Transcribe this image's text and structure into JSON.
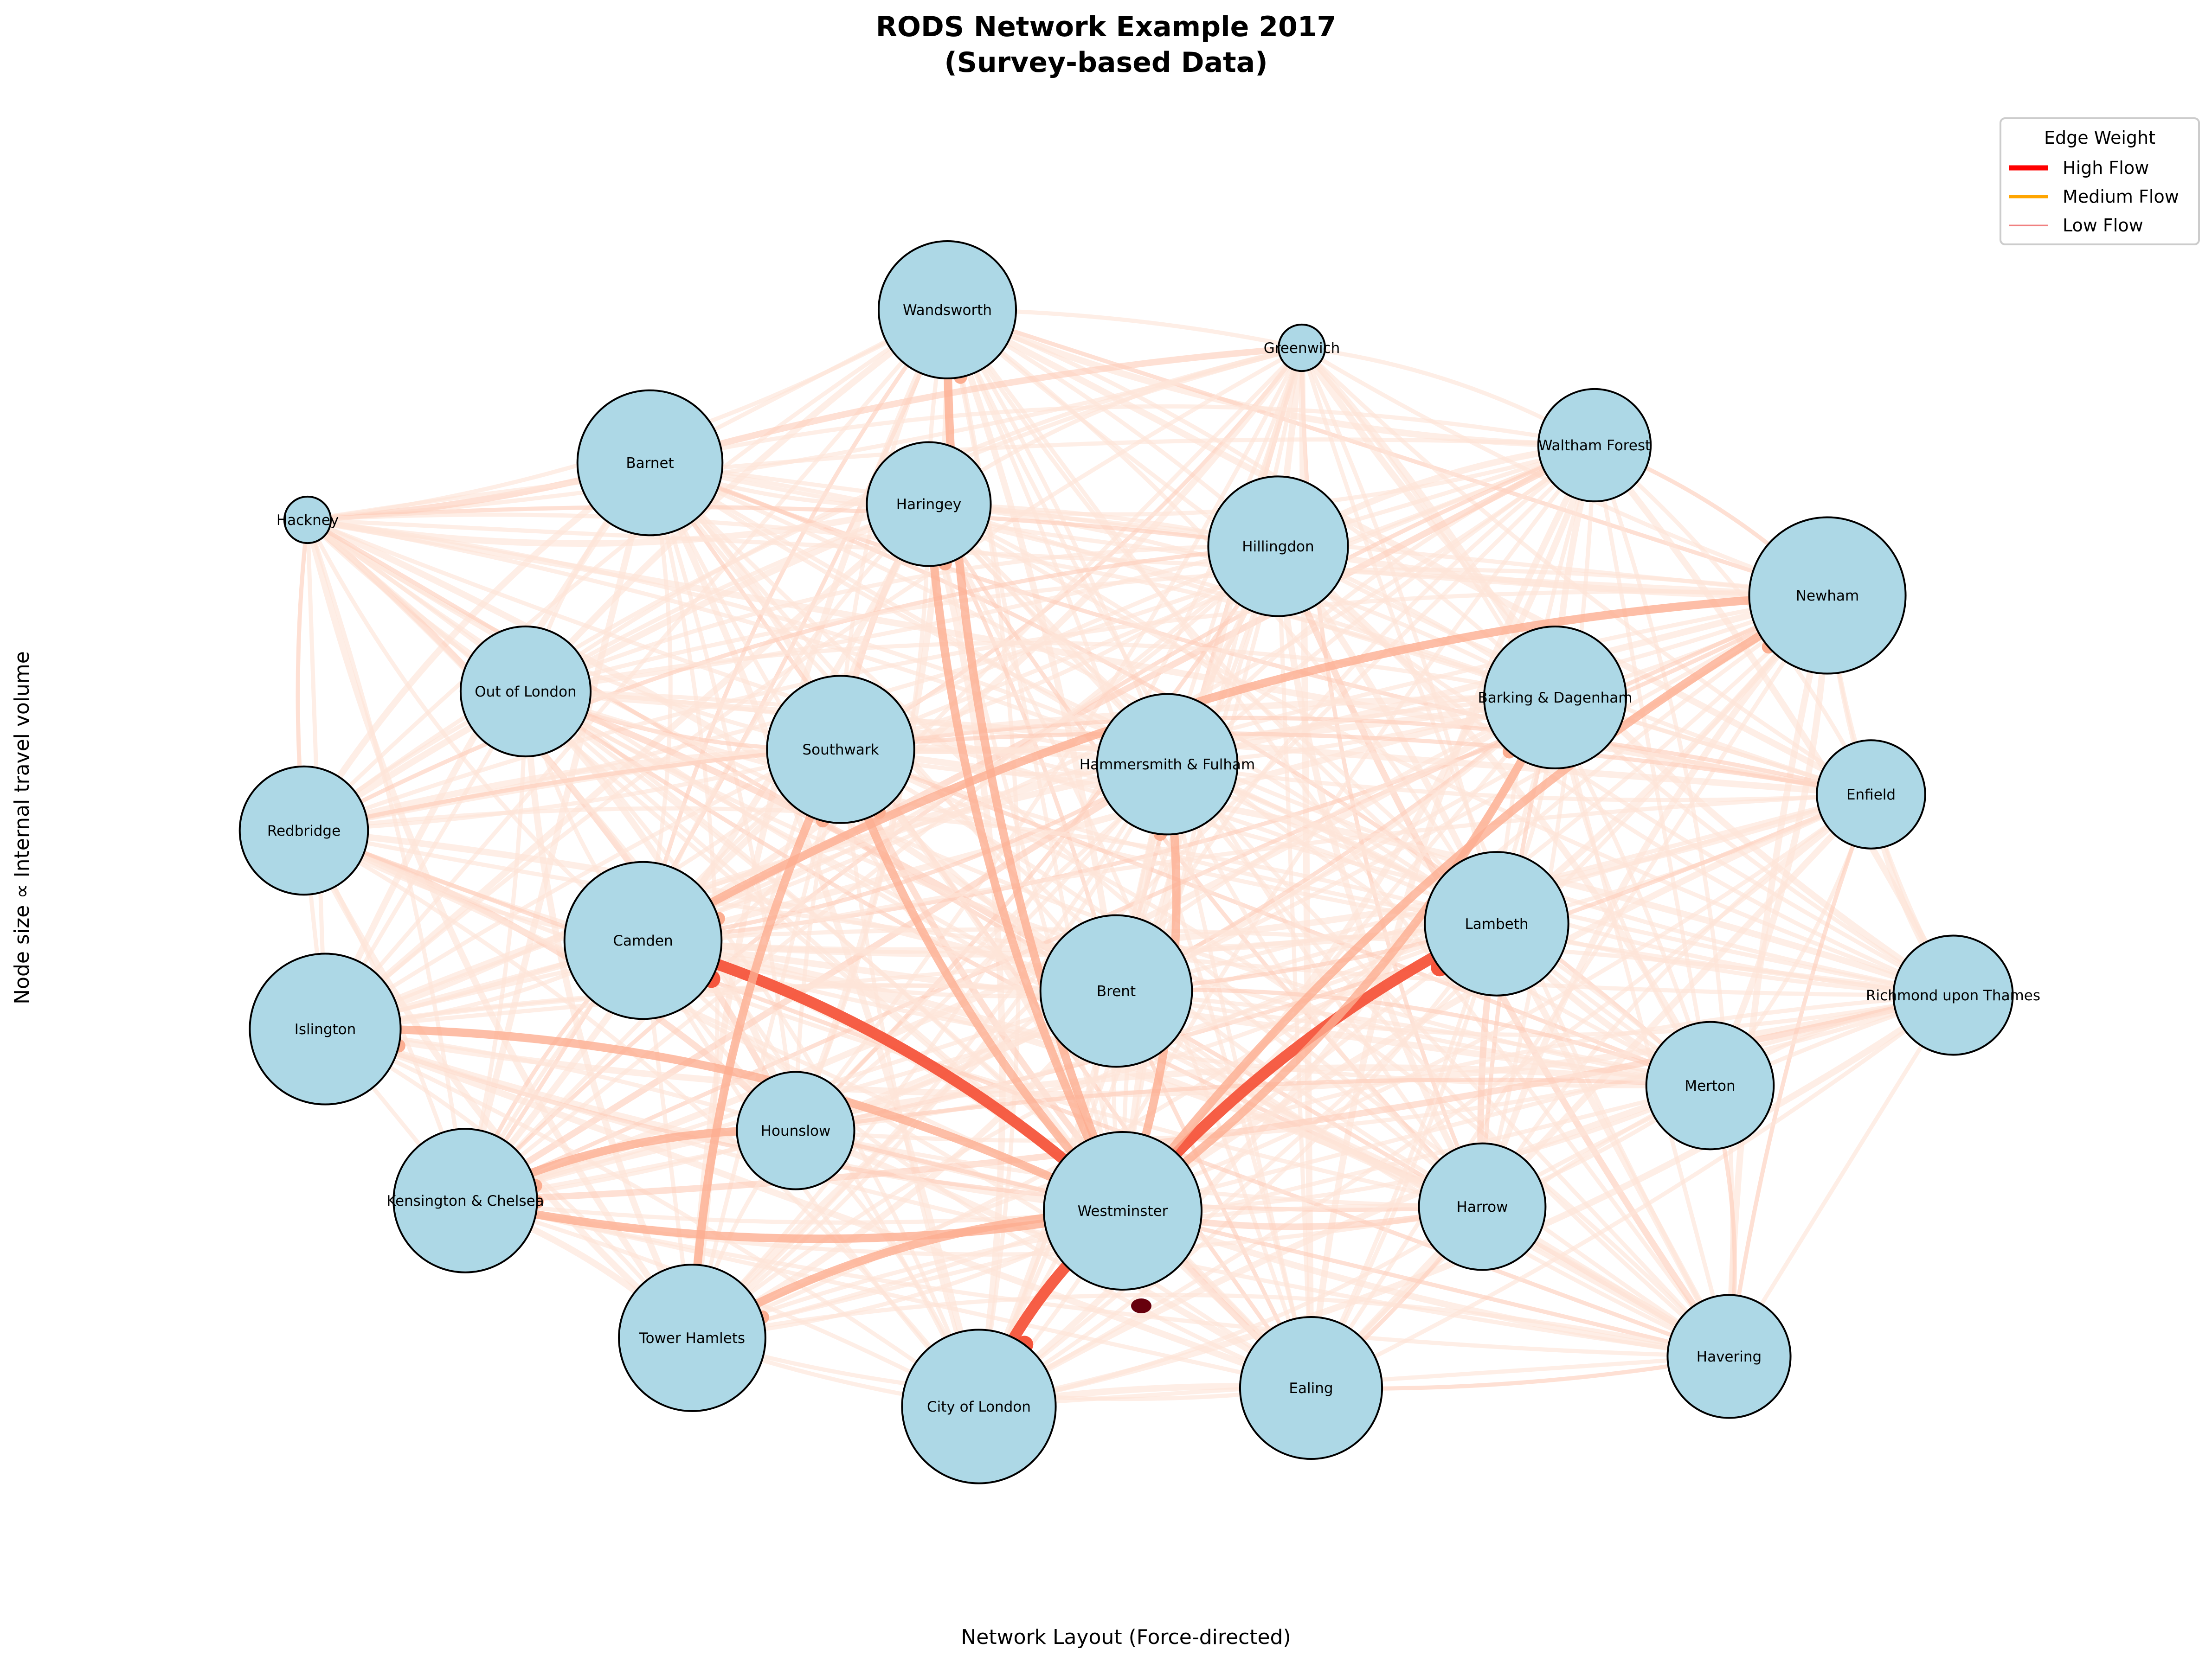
{
  "title_line1": "RODS Network Example 2017",
  "title_line2": "(Survey-based Data)",
  "xlabel": "Network Layout (Force-directed)",
  "ylabel": "Node size ∝ Internal travel volume",
  "legend": {
    "title": "Edge Weight",
    "placement": "top-right",
    "items": [
      {
        "label": "High Flow",
        "color": "#ff0000"
      },
      {
        "label": "Medium Flow",
        "color": "#ffa500"
      },
      {
        "label": "Low Flow",
        "color": "#f08080"
      }
    ]
  },
  "colors": {
    "node_fill": "#add8e6",
    "node_stroke": "#000000",
    "edge_strong": "#f5553c",
    "edge_medium": "#fcae91",
    "edge_light": "#fee5d9",
    "edge_darkest": "#67000d"
  },
  "nodes": [
    {
      "id": "Wandsworth",
      "label": "Wandsworth",
      "volume": 0.72
    },
    {
      "id": "Greenwich",
      "label": "Greenwich",
      "volume": 0.03
    },
    {
      "id": "Barnet",
      "label": "Barnet",
      "volume": 0.82
    },
    {
      "id": "Haringey",
      "label": "Haringey",
      "volume": 0.56
    },
    {
      "id": "Waltham Forest",
      "label": "Waltham Forest",
      "volume": 0.44
    },
    {
      "id": "Hackney",
      "label": "Hackney",
      "volume": 0.03
    },
    {
      "id": "Hillingdon",
      "label": "Hillingdon",
      "volume": 0.75
    },
    {
      "id": "Newham",
      "label": "Newham",
      "volume": 0.98
    },
    {
      "id": "Out of London",
      "label": "Out of London",
      "volume": 0.63
    },
    {
      "id": "Southwark",
      "label": "Southwark",
      "volume": 0.85
    },
    {
      "id": "Barking & Dagenham",
      "label": "Barking & Dagenham",
      "volume": 0.78
    },
    {
      "id": "Hammersmith & Fulham",
      "label": "Hammersmith & Fulham",
      "volume": 0.76
    },
    {
      "id": "Enfield",
      "label": "Enfield",
      "volume": 0.4
    },
    {
      "id": "Redbridge",
      "label": "Redbridge",
      "volume": 0.61
    },
    {
      "id": "Camden",
      "label": "Camden",
      "volume": 0.99
    },
    {
      "id": "Lambeth",
      "label": "Lambeth",
      "volume": 0.8
    },
    {
      "id": "Brent",
      "label": "Brent",
      "volume": 0.91
    },
    {
      "id": "Islington",
      "label": "Islington",
      "volume": 0.9
    },
    {
      "id": "Richmond upon Thames",
      "label": "Richmond upon Thames",
      "volume": 0.51
    },
    {
      "id": "Merton",
      "label": "Merton",
      "volume": 0.6
    },
    {
      "id": "Hounslow",
      "label": "Hounslow",
      "volume": 0.49
    },
    {
      "id": "Kensington & Chelsea",
      "label": "Kensington & Chelsea",
      "volume": 0.8
    },
    {
      "id": "Westminster",
      "label": "Westminster",
      "volume": 1.0
    },
    {
      "id": "Harrow",
      "label": "Harrow",
      "volume": 0.59
    },
    {
      "id": "Tower Hamlets",
      "label": "Tower Hamlets",
      "volume": 0.84
    },
    {
      "id": "City of London",
      "label": "City of London",
      "volume": 0.94
    },
    {
      "id": "Ealing",
      "label": "Ealing",
      "volume": 0.78
    },
    {
      "id": "Havering",
      "label": "Havering",
      "volume": 0.55
    }
  ],
  "highlighted_edges": [
    {
      "source": "Westminster",
      "target": "Camden",
      "level": "strong"
    },
    {
      "source": "Westminster",
      "target": "Lambeth",
      "level": "strong"
    },
    {
      "source": "Westminster",
      "target": "City of London",
      "level": "strong"
    },
    {
      "source": "Westminster",
      "target": "Southwark",
      "level": "medium"
    },
    {
      "source": "Westminster",
      "target": "Islington",
      "level": "medium"
    },
    {
      "source": "Westminster",
      "target": "Kensington & Chelsea",
      "level": "medium"
    },
    {
      "source": "Westminster",
      "target": "Tower Hamlets",
      "level": "medium"
    },
    {
      "source": "Westminster",
      "target": "Newham",
      "level": "medium"
    },
    {
      "source": "Westminster",
      "target": "Barking & Dagenham",
      "level": "medium"
    },
    {
      "source": "Westminster",
      "target": "Haringey",
      "level": "medium"
    },
    {
      "source": "Westminster",
      "target": "Hammersmith & Fulham",
      "level": "medium"
    },
    {
      "source": "Westminster",
      "target": "Wandsworth",
      "level": "medium"
    },
    {
      "source": "Hounslow",
      "target": "Kensington & Chelsea",
      "level": "medium"
    },
    {
      "source": "Tower Hamlets",
      "target": "Southwark",
      "level": "medium"
    },
    {
      "source": "Newham",
      "target": "Camden",
      "level": "medium"
    }
  ]
}
